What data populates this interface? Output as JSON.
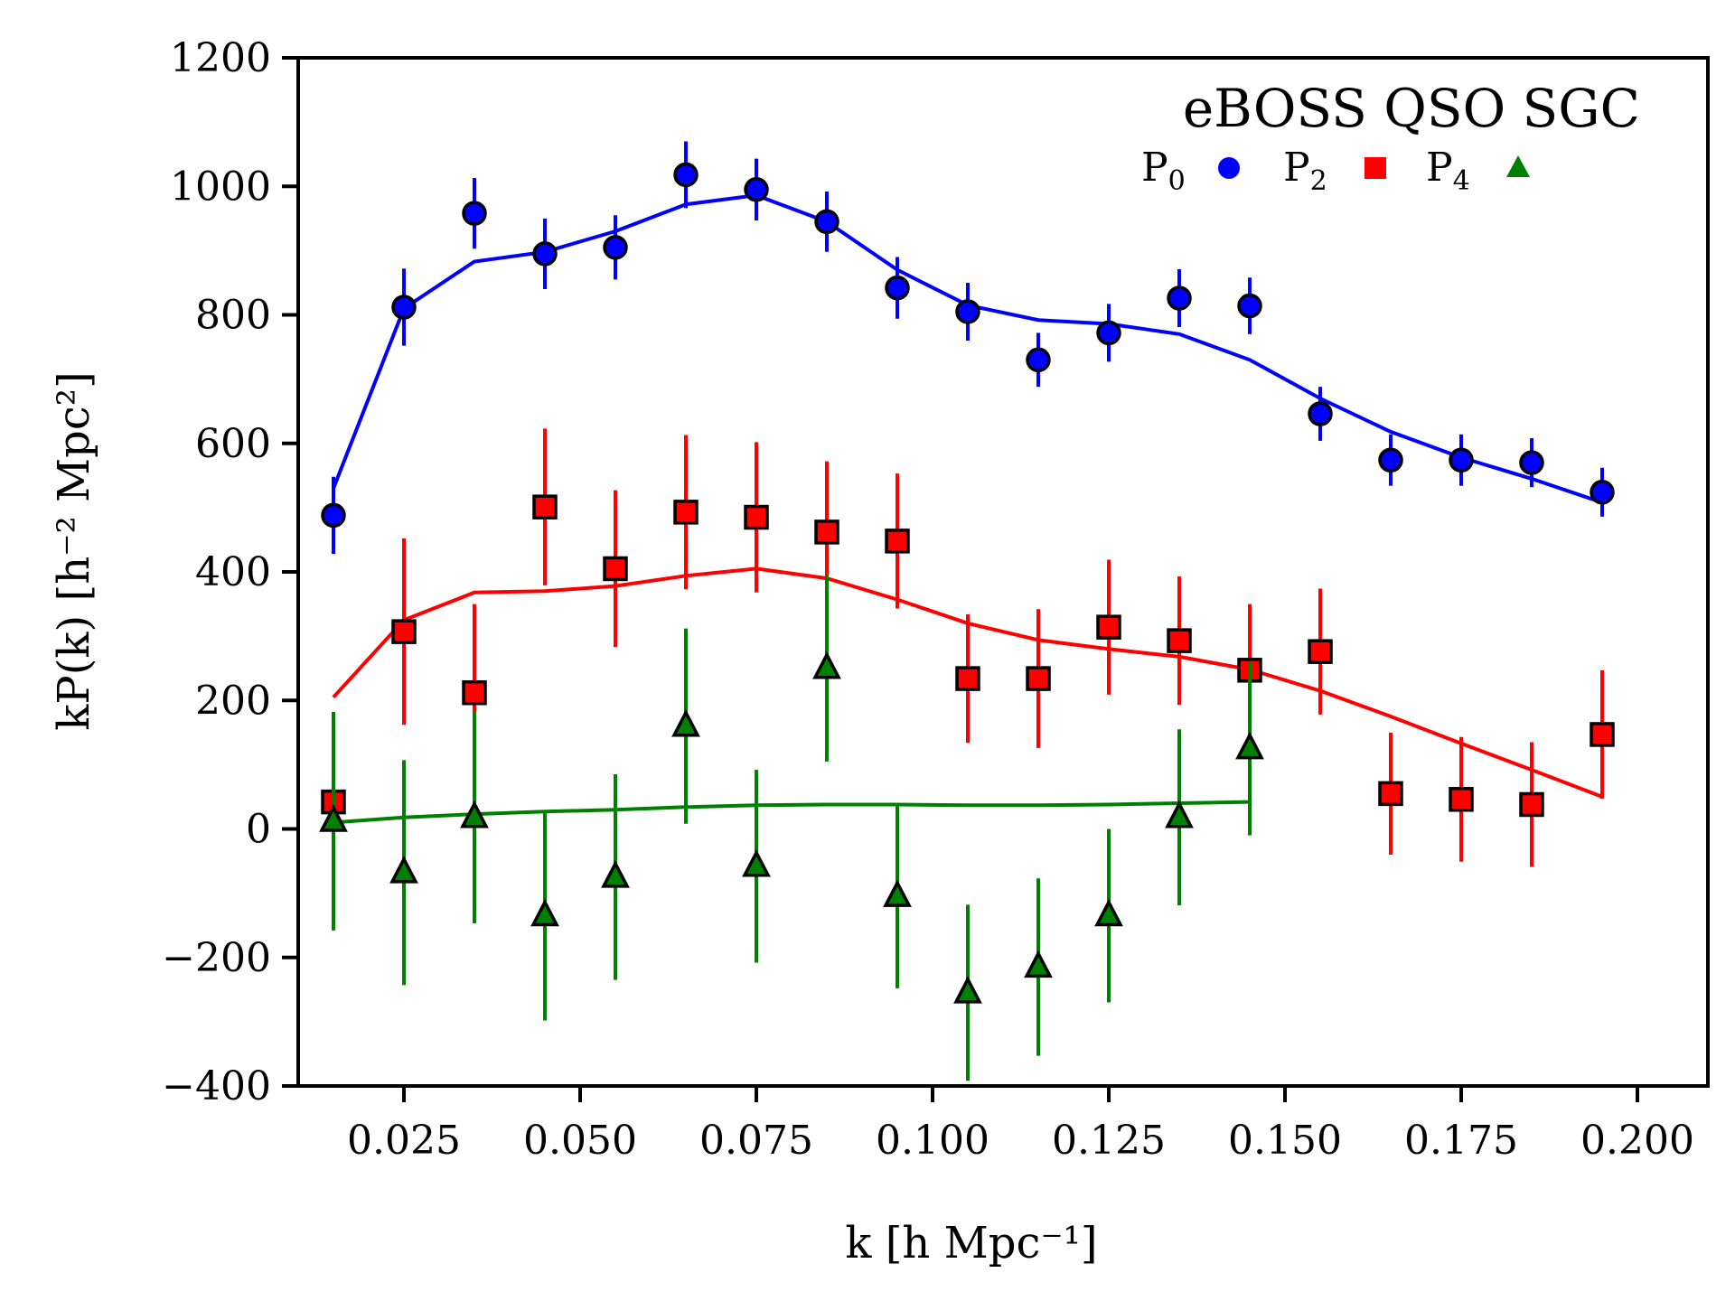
{
  "chart_data": {
    "type": "scatter",
    "title": "",
    "legend_title": "eBOSS QSO SGC",
    "legend_position": "top-right",
    "xlabel": "k [h Mpc⁻¹]",
    "ylabel": "kP(k) [h⁻² Mpc²]",
    "xlim": [
      0.01,
      0.21
    ],
    "ylim": [
      -400,
      1200
    ],
    "xticks": [
      0.025,
      0.05,
      0.075,
      0.1,
      0.125,
      0.15,
      0.175,
      0.2
    ],
    "xtick_labels": [
      "0.025",
      "0.050",
      "0.075",
      "0.100",
      "0.125",
      "0.150",
      "0.175",
      "0.200"
    ],
    "yticks": [
      -400,
      -200,
      0,
      200,
      400,
      600,
      800,
      1000,
      1200
    ],
    "ytick_labels": [
      "−400",
      "−200",
      "0",
      "200",
      "400",
      "600",
      "800",
      "1000",
      "1200"
    ],
    "series": [
      {
        "name": "P0",
        "legend_main": "P",
        "legend_sub": "0",
        "color": "#0000ff",
        "marker": "circle",
        "x": [
          0.015,
          0.025,
          0.035,
          0.045,
          0.055,
          0.065,
          0.075,
          0.085,
          0.095,
          0.105,
          0.115,
          0.125,
          0.135,
          0.145,
          0.155,
          0.165,
          0.175,
          0.185,
          0.195
        ],
        "values": [
          488,
          812,
          958,
          895,
          905,
          1018,
          995,
          945,
          842,
          805,
          730,
          772,
          826,
          814,
          646,
          574,
          574,
          570,
          524
        ],
        "errors": [
          60,
          60,
          55,
          55,
          50,
          52,
          48,
          47,
          48,
          45,
          42,
          45,
          45,
          44,
          42,
          40,
          40,
          38,
          38
        ],
        "model": [
          530,
          810,
          883,
          898,
          930,
          972,
          986,
          945,
          870,
          815,
          792,
          786,
          770,
          730,
          670,
          618,
          578,
          545,
          508
        ]
      },
      {
        "name": "P2",
        "legend_main": "P",
        "legend_sub": "2",
        "color": "#ff0000",
        "marker": "square",
        "x": [
          0.015,
          0.025,
          0.035,
          0.045,
          0.055,
          0.065,
          0.075,
          0.085,
          0.095,
          0.105,
          0.115,
          0.125,
          0.135,
          0.145,
          0.155,
          0.165,
          0.175,
          0.185,
          0.195
        ],
        "values": [
          42,
          307,
          212,
          501,
          405,
          493,
          485,
          462,
          448,
          234,
          234,
          314,
          293,
          247,
          276,
          55,
          46,
          38,
          147
        ],
        "errors": [
          130,
          145,
          138,
          122,
          122,
          120,
          117,
          110,
          105,
          100,
          108,
          105,
          100,
          103,
          98,
          95,
          97,
          97,
          100
        ],
        "model": [
          205,
          325,
          368,
          370,
          378,
          394,
          405,
          390,
          357,
          320,
          294,
          280,
          268,
          248,
          215,
          175,
          133,
          92,
          50
        ]
      },
      {
        "name": "P4",
        "legend_main": "P",
        "legend_sub": "4",
        "color": "#008000",
        "marker": "triangle",
        "x": [
          0.015,
          0.025,
          0.035,
          0.045,
          0.055,
          0.065,
          0.075,
          0.085,
          0.095,
          0.105,
          0.115,
          0.125,
          0.135,
          0.145
        ],
        "values": [
          12,
          -68,
          18,
          -135,
          -75,
          160,
          -58,
          250,
          -105,
          -255,
          -215,
          -135,
          18,
          125
        ],
        "errors": [
          170,
          175,
          165,
          163,
          160,
          152,
          150,
          145,
          143,
          137,
          138,
          135,
          137,
          135
        ],
        "model": [
          10,
          18,
          23,
          27,
          30,
          34,
          37,
          38,
          38,
          37,
          37,
          38,
          40,
          42
        ]
      }
    ]
  }
}
